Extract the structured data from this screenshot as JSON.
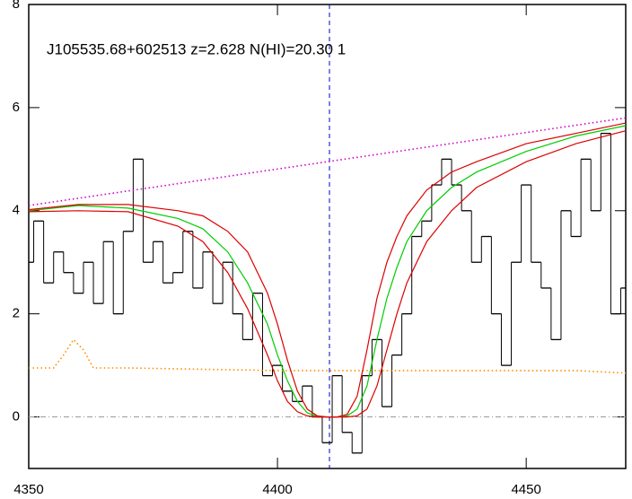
{
  "chart_data": {
    "type": "step",
    "title": "J105535.68+602513 z=2.628 N(HI)=20.30 1",
    "xlim": [
      4350,
      4470
    ],
    "ylim": [
      -1,
      8
    ],
    "xticks": [
      4350,
      4400,
      4450
    ],
    "yticks": [
      0,
      2,
      4,
      6,
      8
    ],
    "vline": 4410.45,
    "vline_color": "#0000cc",
    "x": [
      4350,
      4352,
      4354,
      4356,
      4358,
      4360,
      4362,
      4364,
      4366,
      4368,
      4370,
      4372,
      4374,
      4376,
      4378,
      4380,
      4382,
      4384,
      4386,
      4388,
      4390,
      4392,
      4394,
      4396,
      4398,
      4400,
      4402,
      4404,
      4406,
      4408,
      4410,
      4412,
      4414,
      4416,
      4418,
      4420,
      4422,
      4424,
      4426,
      4428,
      4430,
      4432,
      4434,
      4436,
      4438,
      4440,
      4442,
      4444,
      4446,
      4448,
      4450,
      4452,
      4454,
      4456,
      4458,
      4460,
      4462,
      4464,
      4466,
      4468,
      4470
    ],
    "series": [
      {
        "name": "flux",
        "color": "#000000",
        "style": "step",
        "values": [
          3.0,
          3.8,
          2.6,
          3.2,
          2.8,
          2.4,
          3.0,
          2.2,
          3.4,
          2.0,
          3.6,
          5.0,
          3.0,
          3.4,
          2.6,
          2.8,
          3.6,
          2.5,
          3.2,
          2.2,
          3.0,
          2.0,
          1.5,
          2.4,
          0.8,
          1.0,
          0.5,
          0.3,
          0.6,
          0.0,
          -0.5,
          0.8,
          -0.3,
          -0.7,
          0.8,
          1.5,
          0.2,
          1.2,
          2.0,
          3.5,
          3.8,
          4.5,
          5.0,
          4.5,
          4.0,
          3.0,
          3.5,
          2.0,
          1.0,
          3.0,
          4.5,
          3.0,
          2.5,
          1.5,
          4.0,
          3.5,
          5.0,
          4.0,
          5.5,
          2.0,
          2.5
        ]
      },
      {
        "name": "continuum",
        "color": "#cc00cc",
        "style": "dotted",
        "x": [
          4350,
          4470
        ],
        "values": [
          4.1,
          5.8
        ]
      },
      {
        "name": "error",
        "color": "#ff8c00",
        "style": "dotted",
        "x": [
          4350,
          4355,
          4357,
          4359,
          4361,
          4363,
          4370,
          4400,
          4420,
          4440,
          4460,
          4470
        ],
        "values": [
          0.95,
          0.95,
          1.2,
          1.5,
          1.3,
          0.95,
          0.95,
          0.9,
          0.9,
          0.9,
          0.9,
          0.85
        ]
      },
      {
        "name": "model",
        "color": "#00cc00",
        "style": "solid",
        "x": [
          4350,
          4360,
          4370,
          4380,
          4385,
          4390,
          4394,
          4398,
          4400,
          4402,
          4404,
          4406,
          4408,
          4410,
          4412,
          4414,
          4416,
          4418,
          4420,
          4422,
          4424,
          4426,
          4430,
          4435,
          4440,
          4450,
          4460,
          4470
        ],
        "values": [
          4.0,
          4.1,
          4.05,
          3.85,
          3.65,
          3.2,
          2.6,
          1.8,
          1.2,
          0.7,
          0.3,
          0.08,
          0.01,
          0,
          0,
          0.02,
          0.15,
          0.6,
          1.5,
          2.3,
          2.9,
          3.4,
          4.0,
          4.45,
          4.75,
          5.15,
          5.45,
          5.65
        ]
      },
      {
        "name": "model-upper",
        "color": "#dd0000",
        "style": "solid",
        "x": [
          4350,
          4360,
          4370,
          4380,
          4385,
          4390,
          4394,
          4398,
          4400,
          4402,
          4404,
          4406,
          4408,
          4410,
          4412,
          4414,
          4416,
          4418,
          4420,
          4422,
          4424,
          4426,
          4430,
          4435,
          4440,
          4450,
          4460,
          4470
        ],
        "values": [
          4.02,
          4.12,
          4.12,
          4.0,
          3.9,
          3.6,
          3.2,
          2.4,
          1.8,
          1.1,
          0.5,
          0.15,
          0.02,
          0,
          0,
          0.05,
          0.4,
          1.3,
          2.3,
          3.0,
          3.5,
          3.9,
          4.4,
          4.75,
          4.95,
          5.3,
          5.5,
          5.7
        ]
      },
      {
        "name": "model-lower",
        "color": "#dd0000",
        "style": "solid",
        "x": [
          4350,
          4360,
          4370,
          4380,
          4385,
          4390,
          4394,
          4398,
          4400,
          4402,
          4404,
          4406,
          4408,
          4410,
          4412,
          4414,
          4416,
          4418,
          4420,
          4422,
          4424,
          4426,
          4430,
          4435,
          4440,
          4450,
          4460,
          4470
        ],
        "values": [
          3.98,
          4.0,
          3.98,
          3.7,
          3.4,
          2.8,
          2.1,
          1.2,
          0.7,
          0.3,
          0.1,
          0.02,
          0,
          0,
          0,
          0,
          0.02,
          0.15,
          0.6,
          1.3,
          2.0,
          2.6,
          3.4,
          4.0,
          4.45,
          4.95,
          5.3,
          5.55
        ]
      }
    ]
  }
}
